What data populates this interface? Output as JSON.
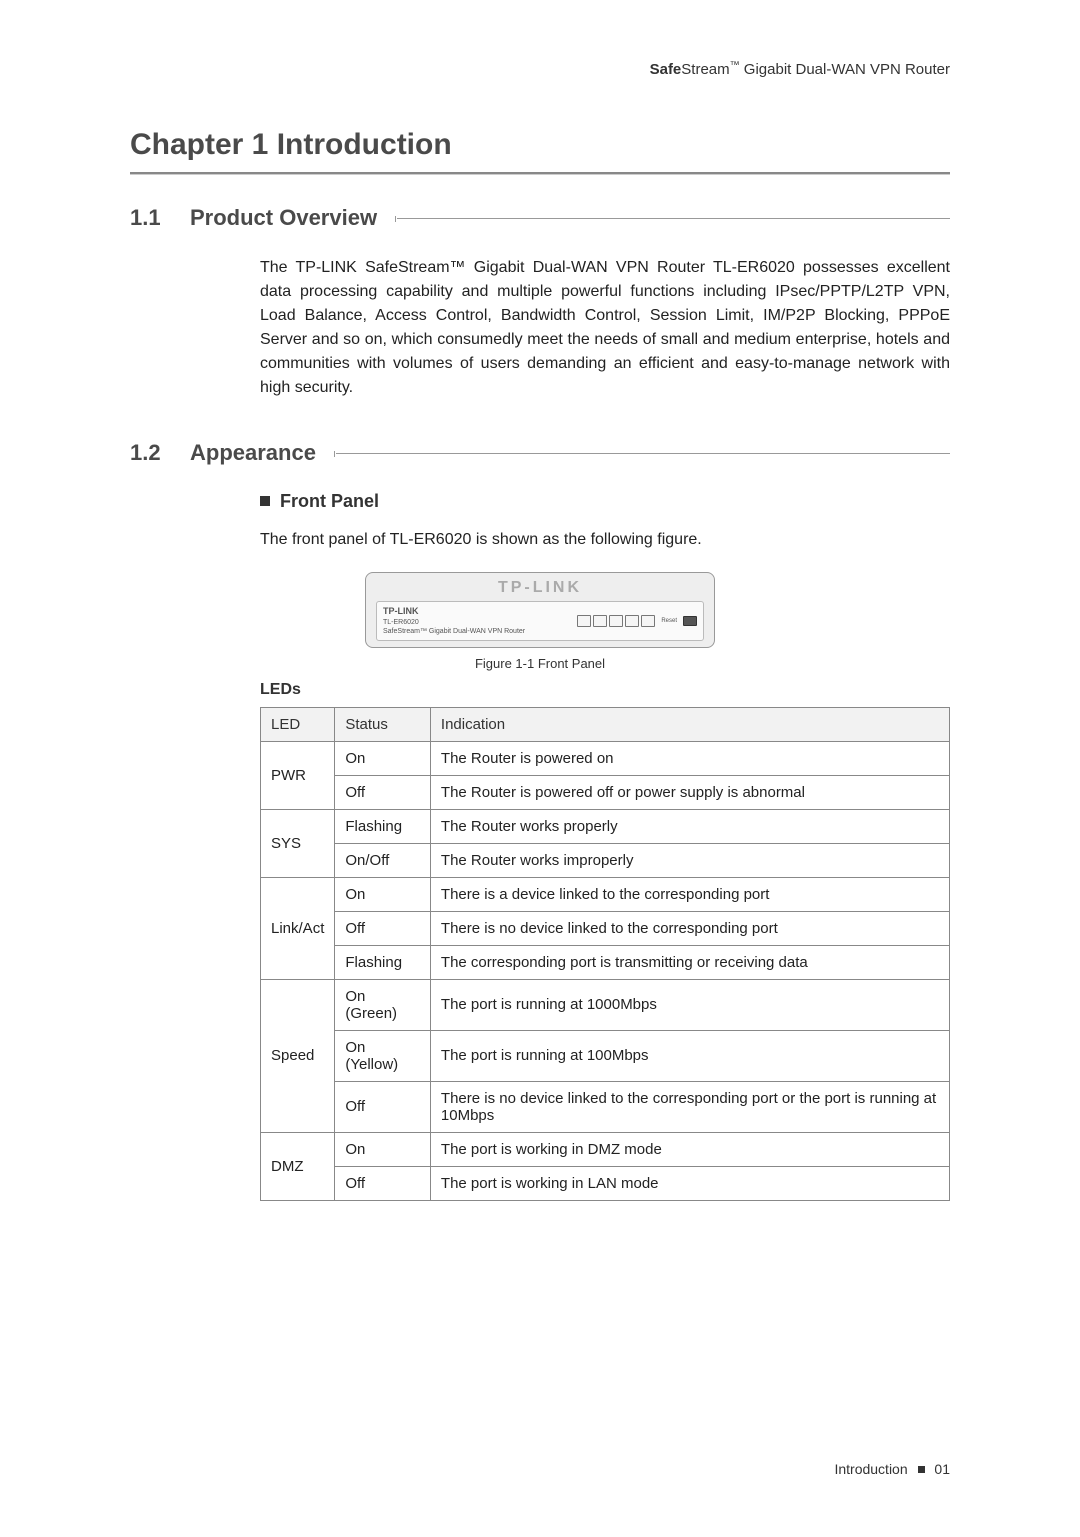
{
  "header": {
    "brand_bold": "Safe",
    "brand_rest": "Stream",
    "tm": "™",
    "product": " Gigabit Dual-WAN VPN Router"
  },
  "chapter": {
    "title": "Chapter 1  Introduction"
  },
  "sections": {
    "s11": {
      "num": "1.1",
      "title": "Product Overview"
    },
    "s12": {
      "num": "1.2",
      "title": "Appearance"
    }
  },
  "overview_text": "The TP-LINK SafeStream™ Gigabit Dual-WAN VPN Router TL-ER6020 possesses excellent data processing capability and multiple powerful functions including IPsec/PPTP/L2TP VPN, Load Balance, Access Control, Bandwidth Control, Session Limit, IM/P2P Blocking, PPPoE Server and so on, which consumedly meet the needs of small and medium enterprise, hotels and communities with volumes of users demanding an efficient and easy-to-manage network with high security.",
  "front_panel_heading": "Front Panel",
  "front_panel_text": "The front panel of TL-ER6020 is shown as the following figure.",
  "figure": {
    "caption": "Figure 1-1   Front Panel",
    "top_brand": "TP-LINK",
    "brand_small": "TP-LINK",
    "model": "TL-ER6020",
    "subtitle": "SafeStream™ Gigabit Dual-WAN VPN Router",
    "reset": "Reset"
  },
  "leds_heading": "LEDs",
  "led_table": {
    "columns": [
      "LED",
      "Status",
      "Indication"
    ],
    "groups": [
      {
        "led": "PWR",
        "rows": [
          {
            "status": "On",
            "ind": "The Router is powered on"
          },
          {
            "status": "Off",
            "ind": "The Router is powered off or power supply is abnormal"
          }
        ]
      },
      {
        "led": "SYS",
        "rows": [
          {
            "status": "Flashing",
            "ind": "The Router works properly"
          },
          {
            "status": "On/Off",
            "ind": "The Router works improperly"
          }
        ]
      },
      {
        "led": "Link/Act",
        "rows": [
          {
            "status": "On",
            "ind": "There is a device linked to the corresponding port"
          },
          {
            "status": "Off",
            "ind": "There is no device linked to the corresponding port"
          },
          {
            "status": "Flashing",
            "ind": "The corresponding port is transmitting or receiving data"
          }
        ]
      },
      {
        "led": "Speed",
        "rows": [
          {
            "status": "On (Green)",
            "ind": "The port is running at 1000Mbps"
          },
          {
            "status": "On (Yellow)",
            "ind": "The port is running at 100Mbps"
          },
          {
            "status": "Off",
            "ind": "There is no device linked to the corresponding port or the port is running at 10Mbps"
          }
        ]
      },
      {
        "led": "DMZ",
        "rows": [
          {
            "status": "On",
            "ind": "The port is working in DMZ mode"
          },
          {
            "status": "Off",
            "ind": "The port is working in LAN mode"
          }
        ]
      }
    ]
  },
  "footer": {
    "section": "Introduction",
    "page": "01"
  }
}
